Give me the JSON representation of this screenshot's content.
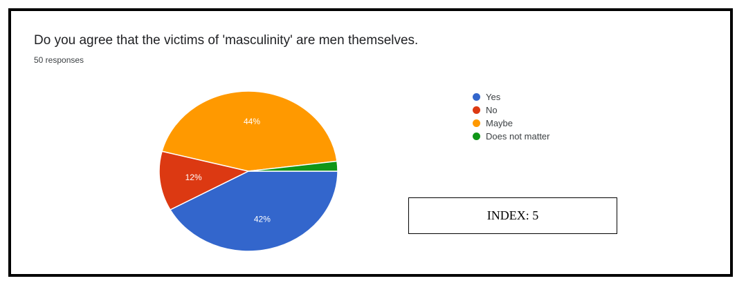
{
  "question": "Do you agree that the victims of 'masculinity' are men themselves.",
  "responses": "50 responses",
  "index_label": "INDEX: 5",
  "chart_data": {
    "type": "pie",
    "title": "Do you agree that the victims of 'masculinity' are men themselves.",
    "subtitle": "50 responses",
    "legend_position": "right",
    "labels": [
      "Yes",
      "No",
      "Maybe",
      "Does not matter"
    ],
    "values": [
      42,
      12,
      44,
      2
    ],
    "unit": "%",
    "data_labels": [
      "42%",
      "12%",
      "44%",
      ""
    ],
    "colors": [
      "#3366cc",
      "#dc3912",
      "#ff9900",
      "#109618"
    ]
  }
}
